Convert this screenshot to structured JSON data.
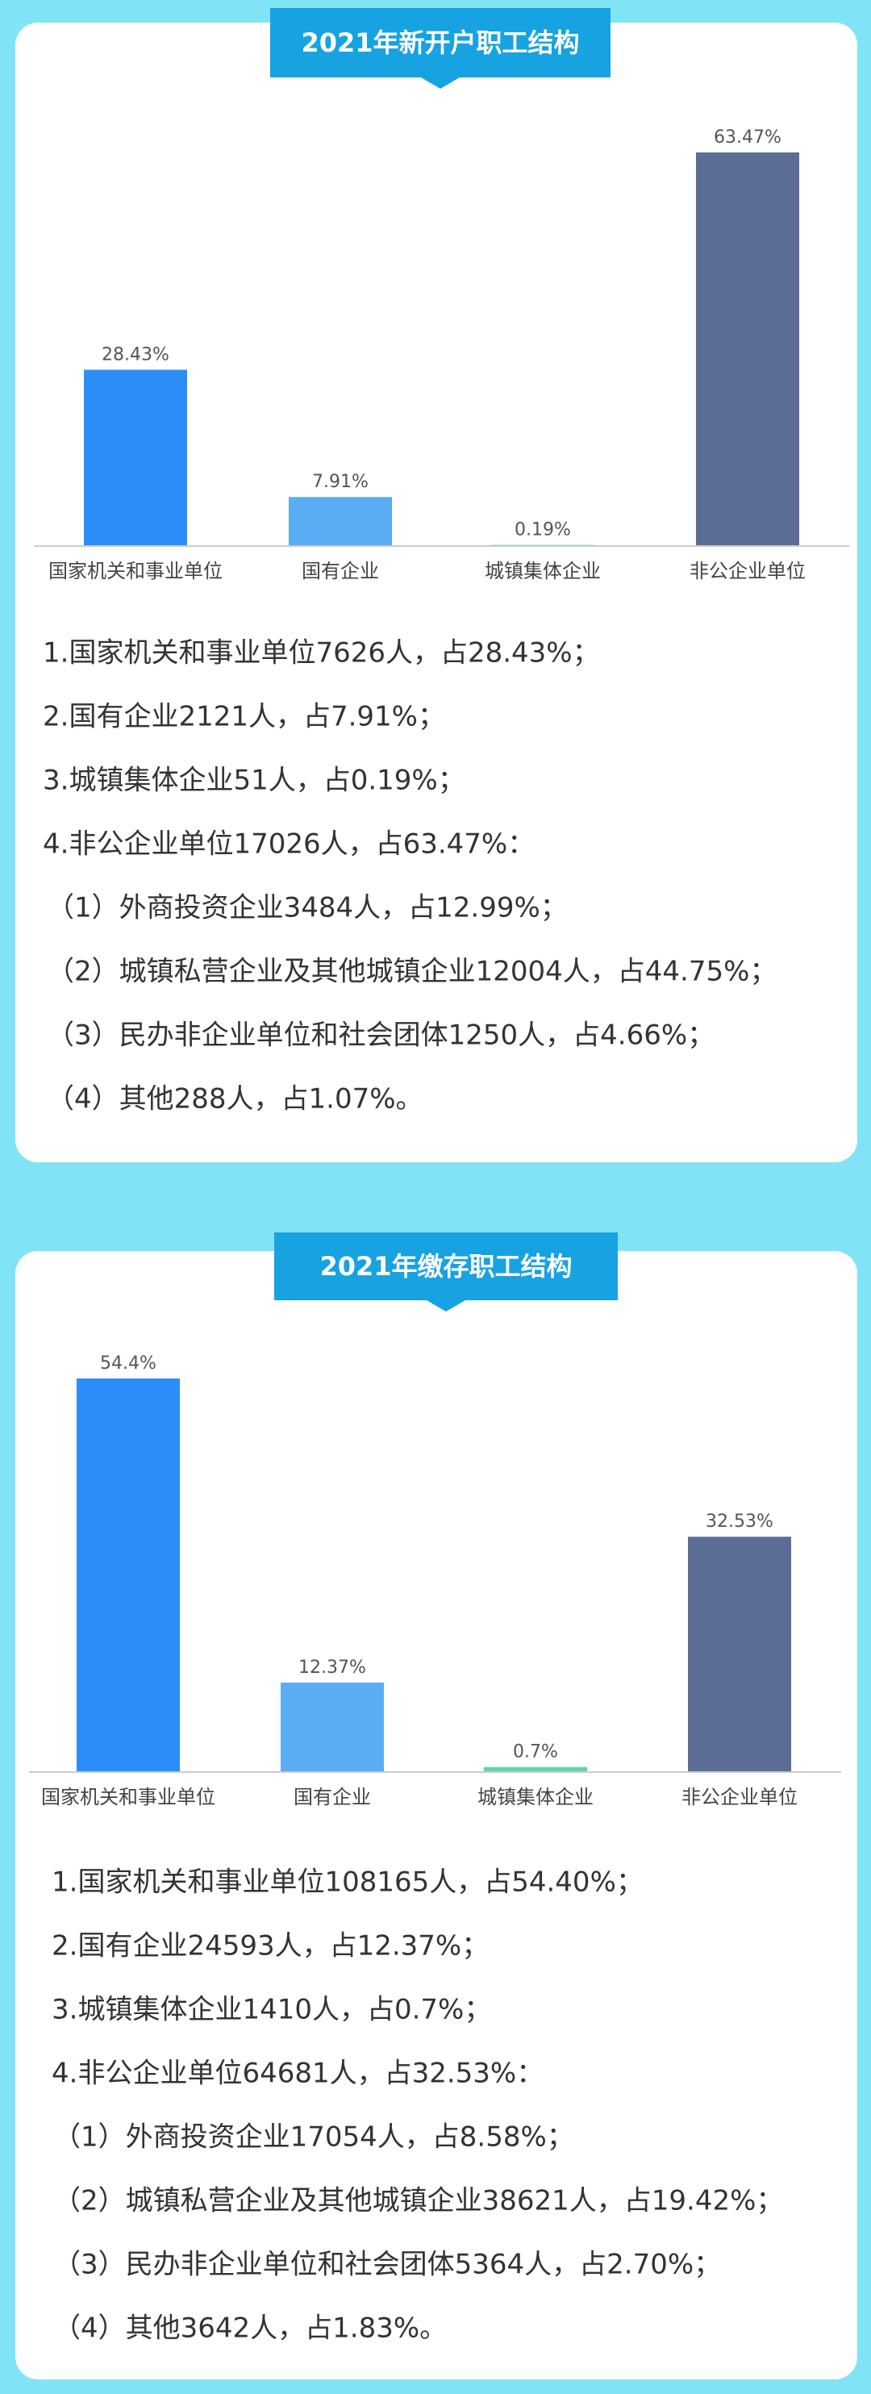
{
  "chart_data": [
    {
      "type": "bar",
      "title": "2021年新开户职工结构",
      "categories": [
        "国家机关和事业单位",
        "国有企业",
        "城镇集体企业",
        "非公企业单位"
      ],
      "values": [
        28.43,
        7.91,
        0.19,
        63.47
      ],
      "value_labels": [
        "28.43%",
        "7.91%",
        "0.19%",
        "63.47%"
      ],
      "colors": [
        "#2b8ef8",
        "#5aadf3",
        "#5fd6a8",
        "#5b6d95"
      ]
    },
    {
      "type": "bar",
      "title": "2021年缴存职工结构",
      "categories": [
        "国家机关和事业单位",
        "国有企业",
        "城镇集体企业",
        "非公企业单位"
      ],
      "values": [
        54.4,
        12.37,
        0.7,
        32.53
      ],
      "value_labels": [
        "54.4%",
        "12.37%",
        "0.7%",
        "32.53%"
      ],
      "colors": [
        "#2b8ef8",
        "#5aadf3",
        "#5fd6a8",
        "#5b6d95"
      ]
    }
  ],
  "summaries": [
    [
      "1.国家机关和事业单位7626人，占28.43%；",
      "2.国有企业2121人，占7.91%；",
      "3.城镇集体企业51人，占0.19%；",
      "4.非公企业单位17026人，占63.47%：",
      "（1）外商投资企业3484人，占12.99%；",
      "（2）城镇私营企业及其他城镇企业12004人，占44.75%；",
      "（3）民办非企业单位和社会团体1250人，占4.66%；",
      "（4）其他288人，占1.07%。"
    ],
    [
      "1.国家机关和事业单位108165人，占54.40%；",
      "2.国有企业24593人，占12.37%；",
      "3.城镇集体企业1410人，占0.7%；",
      "4.非公企业单位64681人，占32.53%：",
      "（1）外商投资企业17054人，占8.58%；",
      "（2）城镇私营企业及其他城镇企业38621人，占19.42%；",
      "（3）民办非企业单位和社会团体5364人，占2.70%；",
      "（4）其他3642人，占1.83%。"
    ]
  ]
}
